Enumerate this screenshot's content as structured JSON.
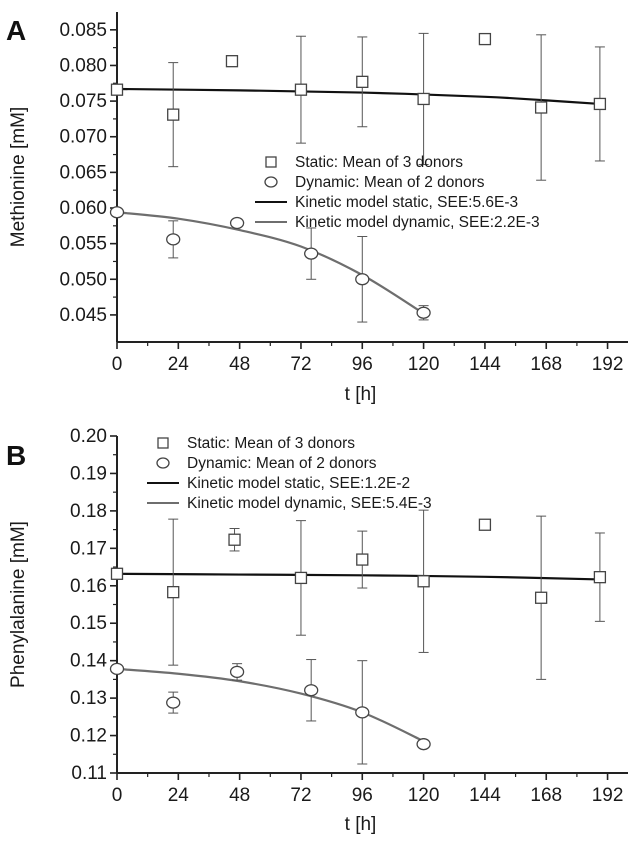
{
  "chart_data": [
    {
      "panel_label": "A",
      "type": "scatter",
      "xlabel": "t [h]",
      "ylabel": "Methionine [mM]",
      "xlim": [
        0,
        200
      ],
      "ylim": [
        0.0412,
        0.0875
      ],
      "xticks": [
        0,
        24,
        48,
        72,
        96,
        120,
        144,
        168,
        192
      ],
      "yticks": [
        0.045,
        0.05,
        0.055,
        0.06,
        0.065,
        0.07,
        0.075,
        0.08,
        0.085
      ],
      "ytick_labels": [
        "0.045",
        "0.050",
        "0.055",
        "0.060",
        "0.065",
        "0.070",
        "0.075",
        "0.080",
        "0.085"
      ],
      "legend_position": "center-right",
      "series": [
        {
          "name": "Static: Mean of 3 donors",
          "marker": "square",
          "color": "#444444",
          "points": [
            {
              "x": 0,
              "y": 0.0766,
              "err": 0.0003
            },
            {
              "x": 22,
              "y": 0.0731,
              "err": 0.0073
            },
            {
              "x": 45,
              "y": 0.0806,
              "err": 0.0003
            },
            {
              "x": 72,
              "y": 0.0766,
              "err": 0.0075
            },
            {
              "x": 96,
              "y": 0.0777,
              "err": 0.0063
            },
            {
              "x": 120,
              "y": 0.0753,
              "err": 0.0092
            },
            {
              "x": 144,
              "y": 0.0837,
              "err": 0.0003
            },
            {
              "x": 166,
              "y": 0.0741,
              "err": 0.0102
            },
            {
              "x": 189,
              "y": 0.0746,
              "err": 0.008
            }
          ]
        },
        {
          "name": "Dynamic: Mean of 2 donors",
          "marker": "circle",
          "color": "#444444",
          "points": [
            {
              "x": 0,
              "y": 0.0594,
              "err": 0.0003
            },
            {
              "x": 22,
              "y": 0.0556,
              "err": 0.0026
            },
            {
              "x": 47,
              "y": 0.0579,
              "err": 0.0005
            },
            {
              "x": 76,
              "y": 0.0536,
              "err": 0.0036
            },
            {
              "x": 96,
              "y": 0.05,
              "err": 0.006
            },
            {
              "x": 120,
              "y": 0.0453,
              "err": 0.001
            }
          ]
        },
        {
          "name": "Kinetic model static, SEE:5.6E-3",
          "style": "line",
          "color": "#111111",
          "points": [
            {
              "x": 0,
              "y": 0.0767
            },
            {
              "x": 48,
              "y": 0.0765
            },
            {
              "x": 96,
              "y": 0.0762
            },
            {
              "x": 144,
              "y": 0.0756
            },
            {
              "x": 168,
              "y": 0.0751
            },
            {
              "x": 189,
              "y": 0.0746
            }
          ]
        },
        {
          "name": "Kinetic model dynamic, SEE:2.2E-3",
          "style": "line",
          "color": "#6e6e6e",
          "points": [
            {
              "x": 0,
              "y": 0.0594
            },
            {
              "x": 24,
              "y": 0.0585
            },
            {
              "x": 48,
              "y": 0.0569
            },
            {
              "x": 72,
              "y": 0.0546
            },
            {
              "x": 96,
              "y": 0.0506
            },
            {
              "x": 120,
              "y": 0.0452
            }
          ]
        }
      ]
    },
    {
      "panel_label": "B",
      "type": "scatter",
      "xlabel": "t [h]",
      "ylabel": "Phenylalanine [mM]",
      "xlim": [
        0,
        200
      ],
      "ylim": [
        0.11,
        0.2
      ],
      "xticks": [
        0,
        24,
        48,
        72,
        96,
        120,
        144,
        168,
        192
      ],
      "yticks": [
        0.11,
        0.12,
        0.13,
        0.14,
        0.15,
        0.16,
        0.17,
        0.18,
        0.19,
        0.2
      ],
      "ytick_labels": [
        "0.11",
        "0.12",
        "0.13",
        "0.14",
        "0.15",
        "0.16",
        "0.17",
        "0.18",
        "0.19",
        "0.20"
      ],
      "legend_position": "top-center",
      "series": [
        {
          "name": "Static: Mean of 3 donors",
          "marker": "square",
          "color": "#444444",
          "points": [
            {
              "x": 0,
              "y": 0.1632,
              "err": 0.0003
            },
            {
              "x": 22,
              "y": 0.1583,
              "err": 0.0195
            },
            {
              "x": 46,
              "y": 0.1723,
              "err": 0.003
            },
            {
              "x": 72,
              "y": 0.1621,
              "err": 0.0153
            },
            {
              "x": 96,
              "y": 0.167,
              "err": 0.0076
            },
            {
              "x": 120,
              "y": 0.1612,
              "err": 0.019
            },
            {
              "x": 144,
              "y": 0.1763,
              "err": 0.0003
            },
            {
              "x": 166,
              "y": 0.1568,
              "err": 0.0218
            },
            {
              "x": 189,
              "y": 0.1623,
              "err": 0.0118
            }
          ]
        },
        {
          "name": "Dynamic: Mean of 2 donors",
          "marker": "circle",
          "color": "#444444",
          "points": [
            {
              "x": 0,
              "y": 0.1378,
              "err": 0.0003
            },
            {
              "x": 22,
              "y": 0.1288,
              "err": 0.0028
            },
            {
              "x": 47,
              "y": 0.137,
              "err": 0.0022
            },
            {
              "x": 76,
              "y": 0.1321,
              "err": 0.0082
            },
            {
              "x": 96,
              "y": 0.1262,
              "err": 0.0138
            },
            {
              "x": 120,
              "y": 0.1177,
              "err": 0.0006
            }
          ]
        },
        {
          "name": "Kinetic model static, SEE:1.2E-2",
          "style": "line",
          "color": "#111111",
          "points": [
            {
              "x": 0,
              "y": 0.1632
            },
            {
              "x": 48,
              "y": 0.163
            },
            {
              "x": 96,
              "y": 0.1628
            },
            {
              "x": 144,
              "y": 0.1624
            },
            {
              "x": 189,
              "y": 0.1617
            }
          ]
        },
        {
          "name": "Kinetic model dynamic, SEE:5.4E-3",
          "style": "line",
          "color": "#6e6e6e",
          "points": [
            {
              "x": 0,
              "y": 0.1378
            },
            {
              "x": 24,
              "y": 0.1365
            },
            {
              "x": 48,
              "y": 0.1345
            },
            {
              "x": 72,
              "y": 0.1312
            },
            {
              "x": 96,
              "y": 0.1262
            },
            {
              "x": 120,
              "y": 0.1185
            }
          ]
        }
      ]
    }
  ]
}
